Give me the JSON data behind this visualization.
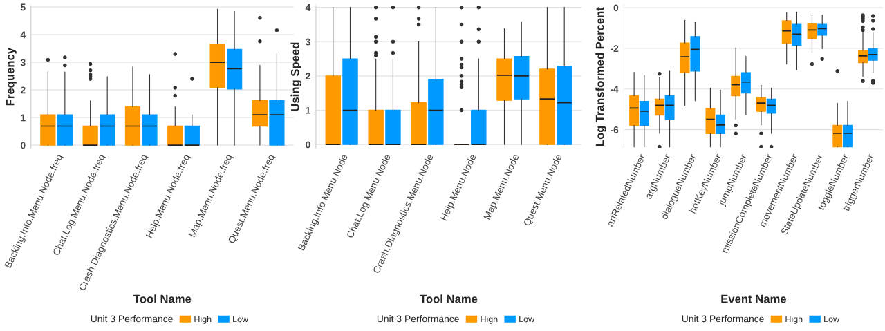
{
  "chart_data": [
    {
      "type": "box",
      "xlabel": "Tool Name",
      "ylabel": "Frequency",
      "legend_title": "Unit 3 Performance",
      "legend": "bottom",
      "grid": "y",
      "ylim": [
        -0.1,
        5.05
      ],
      "yticks": [
        0,
        1,
        2,
        3,
        4,
        5
      ],
      "categories": [
        "Backing.Info.Menu.Node.freq",
        "Chat.Log.Menu.Node.freq",
        "Crash.Diagnostics.Menu.Node.freq",
        "Help.Menu.Node.freq",
        "Map.Menu.Node.freq",
        "Quest.Menu.Node.freq"
      ],
      "series": [
        {
          "name": "High",
          "color": "#ff9900",
          "boxes": [
            {
              "low": 0,
              "q1": 0,
              "median": 0.69,
              "q3": 1.1,
              "high": 2.65,
              "outliers": [
                3.09
              ]
            },
            {
              "low": 0,
              "q1": 0,
              "median": 0,
              "q3": 0.69,
              "high": 1.61,
              "outliers": [
                2.4,
                2.48,
                2.56,
                2.71,
                2.94
              ]
            },
            {
              "low": 0,
              "q1": 0,
              "median": 0.69,
              "q3": 1.39,
              "high": 2.83
            },
            {
              "low": 0,
              "q1": 0,
              "median": 0,
              "q3": 0.69,
              "high": 1.39,
              "outliers": [
                1.79,
                2.08,
                3.3
              ]
            },
            {
              "low": 0,
              "q1": 2.08,
              "median": 3.0,
              "q3": 3.66,
              "high": 4.93
            },
            {
              "low": 0,
              "q1": 0.69,
              "median": 1.1,
              "q3": 1.61,
              "high": 2.89,
              "outliers": [
                3.76,
                4.61
              ]
            }
          ]
        },
        {
          "name": "Low",
          "color": "#0099ff",
          "boxes": [
            {
              "low": 0,
              "q1": 0,
              "median": 0.69,
              "q3": 1.1,
              "high": 2.65,
              "outliers": [
                2.89,
                3.18
              ]
            },
            {
              "low": 0,
              "q1": 0,
              "median": 0.69,
              "q3": 1.1,
              "high": 2.48
            },
            {
              "low": 0,
              "q1": 0,
              "median": 0.69,
              "q3": 1.1,
              "high": 2.56
            },
            {
              "low": 0,
              "q1": 0,
              "median": 0,
              "q3": 0.69,
              "high": 1.1,
              "outliers": [
                2.4
              ]
            },
            {
              "low": 0,
              "q1": 2.03,
              "median": 2.77,
              "q3": 3.47,
              "high": 4.84
            },
            {
              "low": 0,
              "q1": 0,
              "median": 1.1,
              "q3": 1.61,
              "high": 3.33,
              "outliers": [
                4.16
              ]
            }
          ]
        }
      ]
    },
    {
      "type": "box",
      "xlabel": "Tool Name",
      "ylabel": "Using Speed",
      "legend_title": "Unit 3 Performance",
      "legend": "bottom",
      "grid": "y",
      "ylim": [
        -0.1,
        4.05
      ],
      "yticks": [
        0,
        1,
        2,
        3,
        4
      ],
      "categories": [
        "Backing.Info.Menu.Node",
        "Chat.Log.Menu.Node",
        "Crash.Diagnostics.Menu.Node",
        "Help.Menu.Node",
        "Map.Menu.Node",
        "Quest.Menu.Node"
      ],
      "series": [
        {
          "name": "High",
          "color": "#ff9900",
          "boxes": [
            {
              "low": 0,
              "q1": 0,
              "median": 0,
              "q3": 2,
              "high": 4
            },
            {
              "low": 0,
              "q1": 0,
              "median": 0,
              "q3": 1,
              "high": 2.5,
              "outliers": [
                2.6,
                2.67,
                3,
                3.14,
                3.67,
                4
              ]
            },
            {
              "low": 0,
              "q1": 0,
              "median": 0,
              "q3": 1.22,
              "high": 3,
              "outliers": [
                3.5,
                3.67,
                4
              ]
            },
            {
              "low": 0,
              "q1": 0,
              "median": 0,
              "q3": 0,
              "high": 0,
              "outliers": [
                1,
                1.67,
                1.75,
                1.83,
                2,
                2.25,
                2.33,
                2.5,
                3,
                3.5,
                4
              ]
            },
            {
              "low": 0,
              "q1": 1.29,
              "median": 2.02,
              "q3": 2.5,
              "high": 3.38
            },
            {
              "low": 0,
              "q1": 0,
              "median": 1.33,
              "q3": 2.2,
              "high": 4
            }
          ]
        },
        {
          "name": "Low",
          "color": "#0099ff",
          "boxes": [
            {
              "low": 0,
              "q1": 0,
              "median": 1,
              "q3": 2.5,
              "high": 4
            },
            {
              "low": 0,
              "q1": 0,
              "median": 0,
              "q3": 1,
              "high": 2.5,
              "outliers": [
                2.67,
                3,
                4
              ]
            },
            {
              "low": 0,
              "q1": 0,
              "median": 1,
              "q3": 1.9,
              "high": 4
            },
            {
              "low": 0,
              "q1": 0,
              "median": 0,
              "q3": 1,
              "high": 2.5,
              "outliers": [
                3,
                3.36,
                4
              ]
            },
            {
              "low": 0,
              "q1": 1.33,
              "median": 2.0,
              "q3": 2.57,
              "high": 3.57
            },
            {
              "low": 0,
              "q1": 0,
              "median": 1.22,
              "q3": 2.28,
              "high": 4
            }
          ]
        }
      ]
    },
    {
      "type": "box",
      "xlabel": "Event Name",
      "ylabel": "Log Transformed Percent",
      "legend_title": "Unit 3 Performance",
      "legend": "bottom",
      "grid": "y",
      "ylim": [
        -6.9,
        0.1
      ],
      "yticks": [
        -6,
        -4,
        -2,
        0
      ],
      "categories": [
        "arfRelatedNumber",
        "argNumber",
        "dialogueNumber",
        "hotKeyNumber",
        "jumpNumber",
        "missionCompleteNumber",
        "movementNumber",
        "StateUpdateNumber",
        "toggleNumber",
        "triggerNumber"
      ],
      "series": [
        {
          "name": "High",
          "color": "#ff9900",
          "boxes": [
            {
              "low": -6.85,
              "q1": -5.79,
              "median": -4.94,
              "q3": -4.33,
              "high": -3.18
            },
            {
              "low": -6.18,
              "q1": -5.28,
              "median": -4.8,
              "q3": -4.5,
              "high": -3.44,
              "outliers": [
                -3.25,
                -6.85
              ]
            },
            {
              "low": -4.81,
              "q1": -3.19,
              "median": -2.41,
              "q3": -1.74,
              "high": -0.62
            },
            {
              "low": -6.85,
              "q1": -6.19,
              "median": -5.49,
              "q3": -4.96,
              "high": -3.96
            },
            {
              "low": -5.49,
              "q1": -4.33,
              "median": -3.79,
              "q3": -3.38,
              "high": -1.97,
              "outliers": [
                -5.79,
                -6.19
              ]
            },
            {
              "low": -5.77,
              "q1": -5.1,
              "median": -4.69,
              "q3": -4.42,
              "high": -3.81,
              "outliers": [
                -6.19,
                -6.85
              ]
            },
            {
              "low": -2.77,
              "q1": -1.77,
              "median": -1.14,
              "q3": -0.64,
              "high": -0.24
            },
            {
              "low": -2.21,
              "q1": -1.52,
              "median": -1.1,
              "q3": -0.79,
              "high": -0.39,
              "outliers": [
                -2.77
              ]
            },
            {
              "low": -6.85,
              "q1": -6.85,
              "median": -6.18,
              "q3": -5.79,
              "high": -4.7,
              "outliers": [
                -3.12
              ]
            },
            {
              "low": -3.39,
              "q1": -2.7,
              "median": -2.37,
              "q3": -2.09,
              "high": -1.19,
              "outliers": [
                -0.37,
                -0.45,
                -0.54,
                -0.65,
                -0.97,
                -1.1,
                -3.61
              ]
            }
          ]
        },
        {
          "name": "Low",
          "color": "#0099ff",
          "boxes": [
            {
              "low": -6.85,
              "q1": -5.79,
              "median": -5.09,
              "q3": -4.61,
              "high": -3.33
            },
            {
              "low": -6.85,
              "q1": -5.51,
              "median": -4.8,
              "q3": -4.33,
              "high": -3.12
            },
            {
              "low": -4.58,
              "q1": -3.12,
              "median": -2.05,
              "q3": -1.42,
              "high": -0.72
            },
            {
              "low": -6.85,
              "q1": -6.19,
              "median": -5.77,
              "q3": -5.28,
              "high": -4.05
            },
            {
              "low": -5.27,
              "q1": -4.2,
              "median": -3.66,
              "q3": -3.2,
              "high": -2.39
            },
            {
              "low": -6.19,
              "q1": -5.19,
              "median": -4.8,
              "q3": -4.5,
              "high": -3.96,
              "outliers": [
                -6.85
              ]
            },
            {
              "low": -3.06,
              "q1": -1.85,
              "median": -1.3,
              "q3": -0.82,
              "high": -0.21
            },
            {
              "low": -2.02,
              "q1": -1.35,
              "median": -1.03,
              "q3": -0.82,
              "high": -0.36,
              "outliers": [
                -2.52
              ]
            },
            {
              "low": -6.85,
              "q1": -6.85,
              "median": -6.18,
              "q3": -5.79,
              "high": -4.6
            },
            {
              "low": -3.2,
              "q1": -2.58,
              "median": -2.3,
              "q3": -2.02,
              "high": -1.21,
              "outliers": [
                -0.41,
                -0.64,
                -1.05,
                -3.6,
                -3.7
              ]
            }
          ]
        }
      ]
    }
  ]
}
